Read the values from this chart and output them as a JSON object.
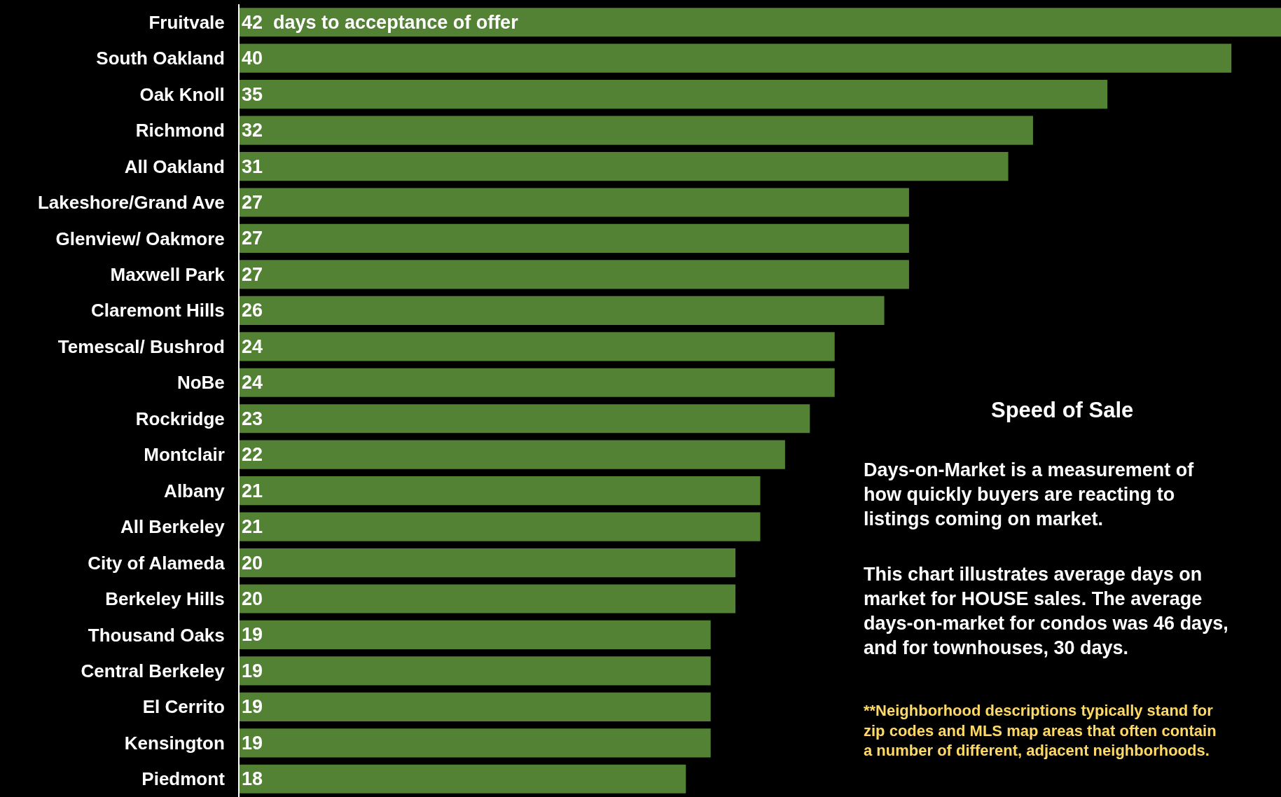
{
  "chart_data": {
    "type": "bar",
    "orientation": "horizontal",
    "categories": [
      "Fruitvale",
      "South Oakland",
      "Oak Knoll",
      "Richmond",
      "All Oakland",
      "Lakeshore/Grand Ave",
      "Glenview/ Oakmore",
      "Maxwell Park",
      "Claremont Hills",
      "Temescal/ Bushrod",
      "NoBe",
      "Rockridge",
      "Montclair",
      "Albany",
      "All Berkeley",
      "City of Alameda",
      "Berkeley Hills",
      "Thousand Oaks",
      "Central Berkeley",
      "El Cerrito",
      "Kensington",
      "Piedmont"
    ],
    "values": [
      42,
      40,
      35,
      32,
      31,
      27,
      27,
      27,
      26,
      24,
      24,
      23,
      22,
      21,
      21,
      20,
      20,
      19,
      19,
      19,
      19,
      18
    ],
    "value_labels": [
      "42  days to acceptance of offer",
      "40",
      "35",
      "32",
      "31",
      "27",
      "27",
      "27",
      "26",
      "24",
      "24",
      "23",
      "22",
      "21",
      "21",
      "20",
      "20",
      "19",
      "19",
      "19",
      "19",
      "18"
    ],
    "color": "#548235",
    "title": "Speed of Sale",
    "annotations": [
      "Days-on-Market is a measurement of\nhow quickly buyers are reacting to\nlistings coming on market.",
      "This chart illustrates average days on\nmarket for HOUSE sales. The average\ndays-on-market for condos was 46 days,\nand for townhouses, 30 days.",
      "**Neighborhood descriptions typically stand for\nzip codes and MLS map areas that often contain\na number of different, adjacent neighborhoods."
    ],
    "grid": false,
    "legend": false
  }
}
